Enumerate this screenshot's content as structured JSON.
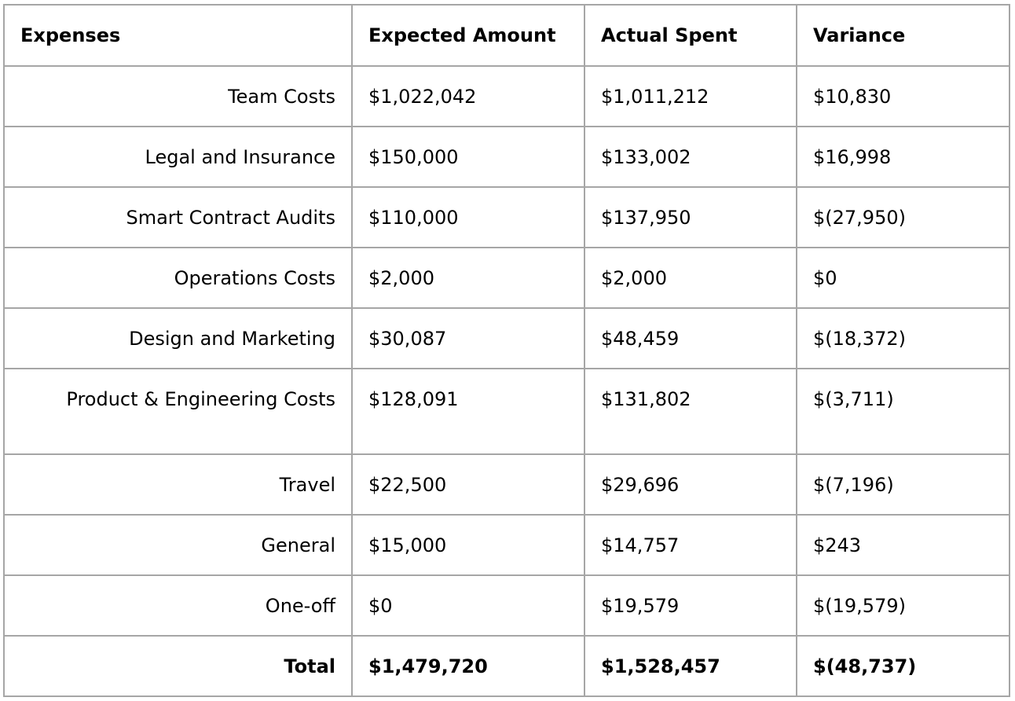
{
  "table": {
    "headers": [
      "Expenses",
      "Expected Amount",
      "Actual Spent",
      "Variance"
    ],
    "rows": [
      {
        "expense": "Team Costs",
        "expected": "$1,022,042",
        "actual": "$1,011,212",
        "variance": "$10,830"
      },
      {
        "expense": "Legal and Insurance",
        "expected": "$150,000",
        "actual": "$133,002",
        "variance": "$16,998"
      },
      {
        "expense": "Smart Contract Audits",
        "expected": "$110,000",
        "actual": "$137,950",
        "variance": "$(27,950)"
      },
      {
        "expense": "Operations Costs",
        "expected": "$2,000",
        "actual": "$2,000",
        "variance": "$0"
      },
      {
        "expense": "Design and Marketing",
        "expected": "$30,087",
        "actual": "$48,459",
        "variance": "$(18,372)"
      },
      {
        "expense": "Product & Engineering Costs",
        "expected": "$128,091",
        "actual": "$131,802",
        "variance": "$(3,711)"
      },
      {
        "expense": "Travel",
        "expected": "$22,500",
        "actual": "$29,696",
        "variance": "$(7,196)"
      },
      {
        "expense": "General",
        "expected": "$15,000",
        "actual": "$14,757",
        "variance": "$243"
      },
      {
        "expense": "One-off",
        "expected": "$0",
        "actual": "$19,579",
        "variance": "$(19,579)"
      }
    ],
    "total": {
      "expense": "Total",
      "expected": "$1,479,720",
      "actual": "$1,528,457",
      "variance": "$(48,737)"
    }
  }
}
